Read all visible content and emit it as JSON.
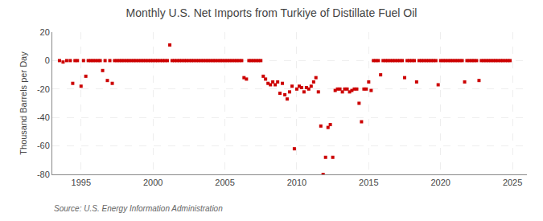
{
  "chart_data": {
    "type": "scatter",
    "title": "Monthly U.S. Net Imports from Turkiye of Distillate Fuel Oil",
    "ylabel": "Thousand Barrels per Day",
    "annotations": [
      "Source: U.S. Energy Information Administration"
    ],
    "x": [
      1993.5,
      1993.75,
      1994.0,
      1994.25,
      1994.42,
      1994.58,
      1994.75,
      1995.0,
      1995.17,
      1995.33,
      1995.5,
      1995.67,
      1995.83,
      1996.0,
      1996.17,
      1996.33,
      1996.5,
      1996.67,
      1996.83,
      1997.0,
      1997.17,
      1997.33,
      1997.5,
      1997.67,
      1997.83,
      1998.0,
      1998.17,
      1998.33,
      1998.5,
      1998.67,
      1998.83,
      1999.0,
      1999.17,
      1999.33,
      1999.5,
      1999.67,
      1999.83,
      2000.0,
      2000.17,
      2000.33,
      2000.5,
      2000.67,
      2000.83,
      2001.0,
      2001.17,
      2001.33,
      2001.5,
      2001.67,
      2001.83,
      2002.0,
      2002.17,
      2002.33,
      2002.5,
      2002.67,
      2002.83,
      2003.0,
      2003.17,
      2003.33,
      2003.5,
      2003.67,
      2003.83,
      2004.0,
      2004.17,
      2004.33,
      2004.5,
      2004.67,
      2004.83,
      2005.0,
      2005.17,
      2005.33,
      2005.5,
      2005.67,
      2005.83,
      2006.0,
      2006.17,
      2006.33,
      2006.5,
      2006.67,
      2006.83,
      2007.0,
      2007.17,
      2007.33,
      2007.5,
      2007.67,
      2007.83,
      2008.0,
      2008.17,
      2008.33,
      2008.5,
      2008.67,
      2008.83,
      2009.0,
      2009.17,
      2009.33,
      2009.5,
      2009.67,
      2009.83,
      2010.0,
      2010.17,
      2010.33,
      2010.5,
      2010.67,
      2010.83,
      2011.0,
      2011.17,
      2011.33,
      2011.5,
      2011.67,
      2011.83,
      2012.0,
      2012.17,
      2012.33,
      2012.5,
      2012.67,
      2012.83,
      2013.0,
      2013.17,
      2013.33,
      2013.5,
      2013.67,
      2013.83,
      2014.0,
      2014.17,
      2014.33,
      2014.5,
      2014.67,
      2014.83,
      2015.0,
      2015.17,
      2015.33,
      2015.5,
      2015.67,
      2015.83,
      2016.0,
      2016.17,
      2016.33,
      2016.5,
      2016.67,
      2016.83,
      2017.0,
      2017.17,
      2017.33,
      2017.5,
      2017.67,
      2017.83,
      2018.0,
      2018.17,
      2018.33,
      2018.5,
      2018.67,
      2018.83,
      2019.0,
      2019.17,
      2019.33,
      2019.5,
      2019.67,
      2019.83,
      2020.0,
      2020.17,
      2020.33,
      2020.5,
      2020.67,
      2020.83,
      2021.0,
      2021.17,
      2021.33,
      2021.5,
      2021.67,
      2021.83,
      2022.0,
      2022.17,
      2022.33,
      2022.5,
      2022.67,
      2022.83,
      2023.0,
      2023.17,
      2023.33,
      2023.5,
      2023.67,
      2023.83,
      2024.0,
      2024.17,
      2024.33,
      2024.5,
      2024.67,
      2024.83
    ],
    "values": [
      0,
      -1,
      0,
      0,
      -16,
      0,
      0,
      -18,
      0,
      -11,
      0,
      0,
      0,
      0,
      0,
      0,
      -7,
      0,
      -14,
      0,
      -16,
      0,
      0,
      0,
      0,
      0,
      0,
      0,
      0,
      0,
      0,
      0,
      0,
      0,
      0,
      0,
      0,
      0,
      0,
      0,
      0,
      0,
      0,
      0,
      11,
      0,
      0,
      0,
      0,
      0,
      0,
      0,
      0,
      0,
      0,
      0,
      0,
      0,
      0,
      0,
      0,
      0,
      0,
      0,
      0,
      0,
      0,
      0,
      0,
      0,
      0,
      0,
      0,
      0,
      0,
      -12,
      -13,
      0,
      0,
      0,
      0,
      0,
      0,
      -11,
      -13,
      -16,
      -17,
      -15,
      -17,
      -15,
      -23,
      -16,
      -24,
      -27,
      -22,
      -18,
      -62,
      -20,
      -18,
      -19,
      -22,
      -19,
      -20,
      -18,
      -15,
      -12,
      -22,
      -46,
      -80,
      -68,
      -47,
      -45,
      -68,
      -21,
      -20,
      -20,
      -22,
      -20,
      -20,
      -22,
      -21,
      -20,
      -20,
      -30,
      -43,
      -20,
      -20,
      -15,
      -21,
      0,
      0,
      0,
      -10,
      0,
      0,
      0,
      0,
      0,
      0,
      0,
      0,
      0,
      -12,
      0,
      0,
      0,
      0,
      -15,
      0,
      0,
      0,
      0,
      0,
      0,
      0,
      0,
      -17,
      0,
      0,
      0,
      0,
      0,
      0,
      0,
      0,
      0,
      0,
      -15,
      0,
      0,
      0,
      0,
      0,
      -14,
      0,
      0,
      0,
      0,
      0,
      0,
      0,
      0,
      0,
      0,
      0,
      0,
      0
    ],
    "color": "#cc0000",
    "marker": "square",
    "xlim": [
      1993.0,
      2026.0
    ],
    "xticks": [
      1995,
      2000,
      2005,
      2010,
      2015,
      2020,
      2025
    ],
    "ylim": [
      -80,
      20
    ],
    "yticks": [
      -80,
      -60,
      -40,
      -20,
      0,
      20
    ],
    "grid": true
  }
}
